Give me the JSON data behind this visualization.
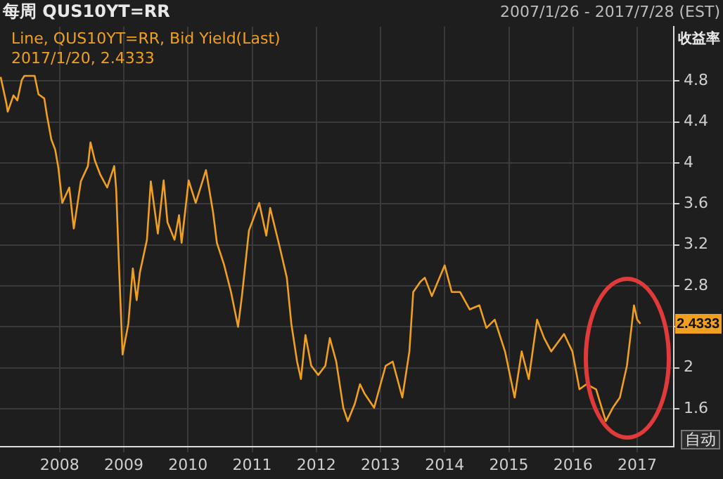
{
  "chart_data": {
    "type": "line",
    "title": "每周 QUS10YT=RR",
    "subtitle": "2007/1/26 - 2017/7/28 (EST)",
    "ylabel": "收益率",
    "legend": "top left",
    "grid": true,
    "marker": "none",
    "line_style": "solid",
    "xlim": [
      2007.07,
      2017.57
    ],
    "xticks": [
      2008,
      2009,
      2010,
      2011,
      2012,
      2013,
      2014,
      2015,
      2016,
      2017
    ],
    "ylim": [
      1.23,
      5.33
    ],
    "yticks": [
      1.6,
      2,
      {
        "value": 2.4,
        "label": null
      },
      2.8,
      3.2,
      3.6,
      4,
      4.4,
      4.8
    ],
    "annotations": [
      "2017/1/20, 2.4333",
      "2.4333",
      "自动"
    ],
    "series": [
      {
        "name": "Line, QUS10YT=RR, Bid Yield(Last)",
        "color": "#f0a020",
        "x": [
          2007.08,
          2007.17,
          2007.19,
          2007.28,
          2007.34,
          2007.41,
          2007.45,
          2007.61,
          2007.67,
          2007.76,
          2007.8,
          2007.87,
          2007.93,
          2007.98,
          2008.04,
          2008.15,
          2008.22,
          2008.33,
          2008.44,
          2008.48,
          2008.55,
          2008.63,
          2008.74,
          2008.85,
          2008.88,
          2008.92,
          2008.98,
          2009.07,
          2009.14,
          2009.2,
          2009.25,
          2009.36,
          2009.42,
          2009.53,
          2009.62,
          2009.68,
          2009.79,
          2009.86,
          2009.9,
          2010.01,
          2010.12,
          2010.28,
          2010.39,
          2010.45,
          2010.56,
          2010.67,
          2010.78,
          2010.84,
          2010.95,
          2011.11,
          2011.22,
          2011.28,
          2011.44,
          2011.54,
          2011.61,
          2011.7,
          2011.76,
          2011.83,
          2011.92,
          2012.03,
          2012.14,
          2012.21,
          2012.31,
          2012.42,
          2012.49,
          2012.6,
          2012.68,
          2012.75,
          2012.9,
          2013.08,
          2013.19,
          2013.34,
          2013.45,
          2013.51,
          2013.62,
          2013.69,
          2013.8,
          2014.0,
          2014.11,
          2014.24,
          2014.39,
          2014.54,
          2014.65,
          2014.78,
          2014.94,
          2015.09,
          2015.2,
          2015.31,
          2015.44,
          2015.55,
          2015.66,
          2015.86,
          2015.99,
          2016.1,
          2016.21,
          2016.36,
          2016.51,
          2016.62,
          2016.73,
          2016.84,
          2016.91,
          2016.95,
          2017.0,
          2017.05
        ],
        "values": [
          4.84,
          4.58,
          4.5,
          4.66,
          4.61,
          4.81,
          4.85,
          4.85,
          4.67,
          4.63,
          4.47,
          4.23,
          4.13,
          3.95,
          3.61,
          3.76,
          3.36,
          3.82,
          3.97,
          4.2,
          4.02,
          3.89,
          3.76,
          3.97,
          3.75,
          3.07,
          2.13,
          2.43,
          2.97,
          2.66,
          2.93,
          3.25,
          3.82,
          3.31,
          3.83,
          3.42,
          3.25,
          3.49,
          3.22,
          3.83,
          3.61,
          3.93,
          3.52,
          3.22,
          3.01,
          2.74,
          2.4,
          2.7,
          3.34,
          3.61,
          3.29,
          3.56,
          3.15,
          2.88,
          2.43,
          2.06,
          1.89,
          2.32,
          2.02,
          1.93,
          2.02,
          2.29,
          2.06,
          1.61,
          1.48,
          1.65,
          1.84,
          1.75,
          1.61,
          2.02,
          2.06,
          1.71,
          2.16,
          2.74,
          2.84,
          2.88,
          2.7,
          3.0,
          2.74,
          2.74,
          2.57,
          2.61,
          2.39,
          2.47,
          2.16,
          1.71,
          2.16,
          1.89,
          2.47,
          2.29,
          2.16,
          2.33,
          2.16,
          1.79,
          1.84,
          1.79,
          1.48,
          1.61,
          1.71,
          2.02,
          2.39,
          2.61,
          2.47,
          2.43
        ]
      }
    ]
  }
}
